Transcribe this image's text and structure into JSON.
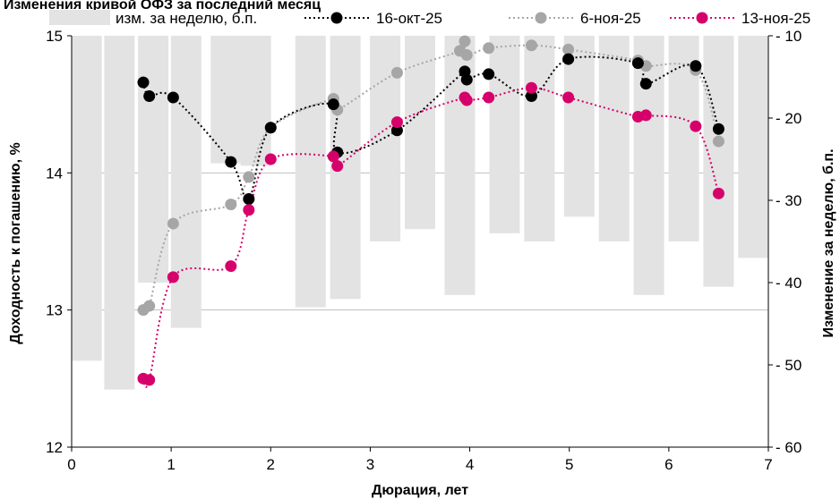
{
  "chart_data": {
    "type": "line",
    "title": "Изменения кривой ОФЗ за последний месяц",
    "xlabel": "Дюрация, лет",
    "ylabel": "Доходность к погашению, %",
    "y2label": "Изменение за неделю, б.п.",
    "xlim": [
      0,
      7
    ],
    "ylim": [
      12,
      15
    ],
    "y2lim": [
      -60,
      -10
    ],
    "y2_inverted": true,
    "x_ticks": [
      "0",
      "1",
      "2",
      "3",
      "4",
      "5",
      "6",
      "7"
    ],
    "y_ticks": [
      "12",
      "13",
      "14",
      "15"
    ],
    "y2_ticks": [
      "- 10",
      "- 20",
      "- 30",
      "- 40",
      "- 50",
      "- 60"
    ],
    "grid": "horizontal",
    "legend_position": "top",
    "bars": {
      "name": "изм. за неделю, б.п.",
      "color": "#e3e3e3",
      "x": [
        0.15,
        0.48,
        0.82,
        1.15,
        1.55,
        1.85,
        2.4,
        2.75,
        3.15,
        3.5,
        3.9,
        4.35,
        4.7,
        5.1,
        5.45,
        5.8,
        6.15,
        6.5,
        6.85
      ],
      "values": [
        -49.5,
        -53,
        -40,
        -45.5,
        -25.5,
        -25.8,
        -43,
        -42,
        -35,
        -33.5,
        -41.5,
        -34,
        -35,
        -32,
        -35,
        -41.5,
        -35,
        -40.5,
        -37
      ]
    },
    "series": [
      {
        "name": "16-окт-25",
        "color": "#000000",
        "x": [
          0.72,
          0.78,
          1.02,
          1.6,
          1.78,
          2.0,
          2.63,
          2.67,
          3.27,
          3.95,
          3.97,
          4.19,
          4.62,
          4.99,
          5.69,
          5.77,
          6.27,
          6.5
        ],
        "y": [
          14.66,
          14.56,
          14.55,
          14.08,
          13.81,
          14.33,
          14.5,
          14.15,
          14.31,
          14.74,
          14.68,
          14.72,
          14.56,
          14.83,
          14.8,
          14.65,
          14.78,
          14.32
        ]
      },
      {
        "name": "6-ноя-25",
        "color": "#a6a6a6",
        "x": [
          0.72,
          0.78,
          1.02,
          1.6,
          1.78,
          2.0,
          2.63,
          2.67,
          3.27,
          3.9,
          3.95,
          3.97,
          4.19,
          4.62,
          4.99,
          5.69,
          5.77,
          6.27,
          6.5
        ],
        "y": [
          13.0,
          13.03,
          13.63,
          13.77,
          13.97,
          14.33,
          14.54,
          14.46,
          14.73,
          14.89,
          14.96,
          14.86,
          14.91,
          14.93,
          14.9,
          14.82,
          14.78,
          14.75,
          14.23
        ]
      },
      {
        "name": "13-ноя-25",
        "color": "#d6006b",
        "x": [
          0.72,
          0.78,
          1.02,
          1.6,
          1.78,
          2.0,
          2.63,
          2.67,
          3.27,
          3.95,
          3.97,
          4.19,
          4.62,
          4.99,
          5.69,
          5.77,
          6.27,
          6.5
        ],
        "y": [
          12.5,
          12.49,
          13.24,
          13.32,
          13.73,
          14.1,
          14.12,
          14.05,
          14.37,
          14.55,
          14.53,
          14.55,
          14.62,
          14.55,
          14.41,
          14.42,
          14.34,
          13.85
        ]
      }
    ]
  }
}
